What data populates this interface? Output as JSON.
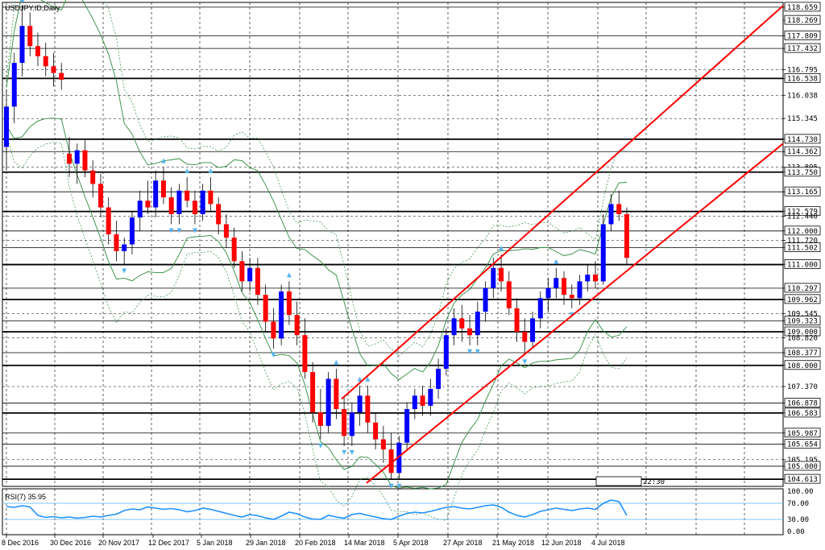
{
  "window": {
    "title": "USDJPY.ID,Daily"
  },
  "timer": {
    "label": "22:30"
  },
  "price_axis": {
    "min": 104.4,
    "max": 118.8,
    "labels": [
      "118.659",
      "118.269",
      "117.809",
      "117.432",
      "116.795",
      "116.538",
      "116.038",
      "115.345",
      "114.730",
      "114.362",
      "113.895",
      "113.750",
      "113.165",
      "112.579",
      "112.440",
      "112.000",
      "111.720",
      "111.502",
      "111.000",
      "110.297",
      "109.962",
      "109.545",
      "109.323",
      "109.000",
      "108.820",
      "108.377",
      "108.000",
      "107.370",
      "106.878",
      "106.583",
      "105.987",
      "105.654",
      "105.195",
      "105.000",
      "104.613"
    ],
    "boxed": [
      "118.659",
      "118.269",
      "117.809",
      "117.432",
      "116.538",
      "114.730",
      "114.362",
      "113.750",
      "113.165",
      "112.579",
      "112.000",
      "111.502",
      "111.000",
      "110.297",
      "109.962",
      "109.323",
      "109.000",
      "108.377",
      "108.000",
      "106.878",
      "106.583",
      "105.987",
      "105.654",
      "105.000",
      "104.613"
    ]
  },
  "horizontal_levels": {
    "thick": [
      116.538,
      114.73,
      113.75,
      112.579,
      111.0,
      109.962,
      109.0,
      108.0,
      106.583,
      104.613
    ],
    "thin": [
      118.659,
      117.809,
      117.432,
      114.362,
      113.165,
      112.0,
      111.502,
      110.297,
      109.323,
      108.377,
      106.878,
      105.987,
      105.654,
      105.0
    ]
  },
  "x_axis": {
    "labels": [
      "8 Dec 2016",
      "30 Dec 2016",
      "20 Nov 2017",
      "12 Dec 2017",
      "5 Jan 2018",
      "29 Jan 2018",
      "20 Feb 2018",
      "14 Mar 2018",
      "5 Apr 2018",
      "27 Apr 2018",
      "21 May 2018",
      "12 Jun 2018",
      "4 Jul 2018"
    ]
  },
  "rsi": {
    "label": "RSI(7) 35.95",
    "scale_labels": [
      "100.00",
      "70.00",
      "30.00",
      "0.00"
    ],
    "levels": [
      70,
      30
    ]
  },
  "colors": {
    "bull": "#0000ff",
    "bear": "#ff0000",
    "trendline": "#ff0000",
    "band": "#2e8b3e",
    "rsi": "#1e90ff",
    "fractal": "#55b4f0"
  },
  "chart_data": {
    "type": "candlestick",
    "title": "USDJPY.ID,Daily",
    "y_range": [
      104.4,
      118.8
    ],
    "candles": [
      [
        114.5,
        116.2,
        113.8,
        115.7
      ],
      [
        115.7,
        117.3,
        115.2,
        117.0
      ],
      [
        117.0,
        118.7,
        116.6,
        118.1
      ],
      [
        118.1,
        118.5,
        117.2,
        117.5
      ],
      [
        117.5,
        117.9,
        116.9,
        117.2
      ],
      [
        117.2,
        117.6,
        116.6,
        116.9
      ],
      [
        116.9,
        117.3,
        116.3,
        116.7
      ],
      [
        116.7,
        117.0,
        116.2,
        116.5
      ],
      [
        114.3,
        114.8,
        113.6,
        114.0
      ],
      [
        114.0,
        114.6,
        113.4,
        114.4
      ],
      [
        114.4,
        114.7,
        113.6,
        113.8
      ],
      [
        113.8,
        114.1,
        113.0,
        113.4
      ],
      [
        113.4,
        113.7,
        112.4,
        112.7
      ],
      [
        112.7,
        113.0,
        111.6,
        111.9
      ],
      [
        111.9,
        112.3,
        111.1,
        111.4
      ],
      [
        111.4,
        111.8,
        111.0,
        111.6
      ],
      [
        111.6,
        112.6,
        111.3,
        112.4
      ],
      [
        112.4,
        113.2,
        112.0,
        112.9
      ],
      [
        112.9,
        113.5,
        112.5,
        112.7
      ],
      [
        112.7,
        113.8,
        112.4,
        113.5
      ],
      [
        113.5,
        113.9,
        112.8,
        113.0
      ],
      [
        113.0,
        113.3,
        112.2,
        112.5
      ],
      [
        112.5,
        113.4,
        112.2,
        113.2
      ],
      [
        113.2,
        113.6,
        112.7,
        112.9
      ],
      [
        112.9,
        113.2,
        112.2,
        112.5
      ],
      [
        112.5,
        113.4,
        112.3,
        113.2
      ],
      [
        113.2,
        113.6,
        112.6,
        112.8
      ],
      [
        112.8,
        113.0,
        111.9,
        112.2
      ],
      [
        112.2,
        112.5,
        111.5,
        111.8
      ],
      [
        111.8,
        112.1,
        110.9,
        111.1
      ],
      [
        111.1,
        111.4,
        110.2,
        110.5
      ],
      [
        110.5,
        111.2,
        110.2,
        110.9
      ],
      [
        110.9,
        111.2,
        109.8,
        110.1
      ],
      [
        110.1,
        110.4,
        109.0,
        109.3
      ],
      [
        109.3,
        109.7,
        108.5,
        108.8
      ],
      [
        108.8,
        110.4,
        108.6,
        110.2
      ],
      [
        110.2,
        110.5,
        109.2,
        109.5
      ],
      [
        109.5,
        109.9,
        108.6,
        108.9
      ],
      [
        108.9,
        109.4,
        107.6,
        107.8
      ],
      [
        107.8,
        108.1,
        106.3,
        106.6
      ],
      [
        106.6,
        107.3,
        105.8,
        106.2
      ],
      [
        106.2,
        107.8,
        106.0,
        107.6
      ],
      [
        107.6,
        107.9,
        106.4,
        106.7
      ],
      [
        106.7,
        107.1,
        105.6,
        105.9
      ],
      [
        105.9,
        106.9,
        105.6,
        106.6
      ],
      [
        106.6,
        107.4,
        106.2,
        107.1
      ],
      [
        107.1,
        107.4,
        106.0,
        106.3
      ],
      [
        106.3,
        106.6,
        105.5,
        105.8
      ],
      [
        105.8,
        106.2,
        105.1,
        105.5
      ],
      [
        105.5,
        106.0,
        104.6,
        104.8
      ],
      [
        104.8,
        105.9,
        104.6,
        105.7
      ],
      [
        105.7,
        106.9,
        105.5,
        106.7
      ],
      [
        106.7,
        107.3,
        106.4,
        107.1
      ],
      [
        107.1,
        107.4,
        106.5,
        106.8
      ],
      [
        106.8,
        107.6,
        106.5,
        107.3
      ],
      [
        107.3,
        108.2,
        107.0,
        107.9
      ],
      [
        107.9,
        109.1,
        107.7,
        108.9
      ],
      [
        108.9,
        109.7,
        108.6,
        109.4
      ],
      [
        109.4,
        109.8,
        108.7,
        109.1
      ],
      [
        109.1,
        109.5,
        108.6,
        108.9
      ],
      [
        108.9,
        109.9,
        108.6,
        109.6
      ],
      [
        109.6,
        110.5,
        109.3,
        110.3
      ],
      [
        110.3,
        111.2,
        110.0,
        110.9
      ],
      [
        110.9,
        111.3,
        110.2,
        110.5
      ],
      [
        110.5,
        110.8,
        109.5,
        109.7
      ],
      [
        109.7,
        110.0,
        108.7,
        109.0
      ],
      [
        109.0,
        109.4,
        108.3,
        108.7
      ],
      [
        108.7,
        109.6,
        108.5,
        109.4
      ],
      [
        109.4,
        110.2,
        109.1,
        110.0
      ],
      [
        110.0,
        110.6,
        109.6,
        110.3
      ],
      [
        110.3,
        110.9,
        110.0,
        110.6
      ],
      [
        110.6,
        110.8,
        109.8,
        110.1
      ],
      [
        110.1,
        110.4,
        109.7,
        110.0
      ],
      [
        110.0,
        110.7,
        109.8,
        110.5
      ],
      [
        110.5,
        111.0,
        110.2,
        110.7
      ],
      [
        110.7,
        111.1,
        110.3,
        110.5
      ],
      [
        110.5,
        112.5,
        110.4,
        112.2
      ],
      [
        112.2,
        113.1,
        112.0,
        112.8
      ],
      [
        112.8,
        113.2,
        112.3,
        112.5
      ],
      [
        112.5,
        112.7,
        111.0,
        111.2
      ]
    ],
    "trendlines": [
      {
        "from": [
          "14 Mar 2018",
          107.0
        ],
        "to": [
          "extended right",
          118.7
        ]
      },
      {
        "from": [
          "14 Mar 2018",
          104.5
        ],
        "to": [
          "extended right",
          114.6
        ]
      }
    ],
    "rsi_series": [
      62,
      60,
      64,
      61,
      40,
      35,
      37,
      34,
      36,
      33,
      35,
      38,
      36,
      40,
      43,
      52,
      56,
      54,
      61,
      58,
      55,
      57,
      54,
      49,
      52,
      58,
      55,
      50,
      45,
      40,
      36,
      42,
      39,
      34,
      30,
      38,
      48,
      44,
      36,
      31,
      30,
      40,
      36,
      33,
      42,
      45,
      40,
      36,
      32,
      30,
      38,
      45,
      48,
      46,
      50,
      55,
      60,
      62,
      58,
      56,
      60,
      64,
      66,
      60,
      48,
      40,
      36,
      42,
      50,
      54,
      58,
      55,
      52,
      56,
      58,
      55,
      70,
      78,
      74,
      40
    ]
  }
}
